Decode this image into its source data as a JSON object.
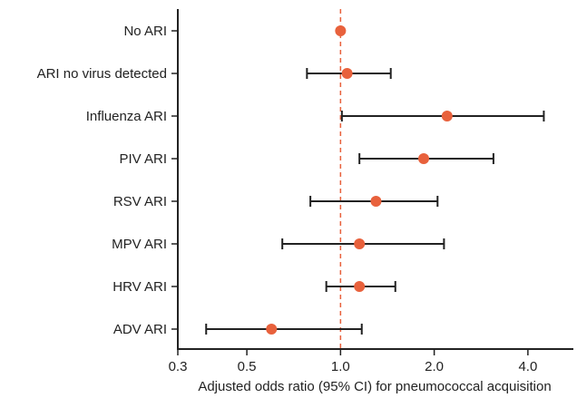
{
  "chart_data": {
    "type": "scatter",
    "subtype": "forest-plot",
    "title": "",
    "xlabel": "Adjusted odds ratio (95% CI) for pneumococcal acquisition",
    "ylabel": "",
    "x_scale": "log",
    "xlim": [
      0.3,
      5.6
    ],
    "x_ticks": [
      0.3,
      0.5,
      1.0,
      2.0,
      4.0
    ],
    "x_tick_labels": [
      "0.3",
      "0.5",
      "1.0",
      "2.0",
      "4.0"
    ],
    "reference_line": 1.0,
    "grid": false,
    "legend": "none",
    "categories": [
      "No ARI",
      "ARI no virus detected",
      "Influenza ARI",
      "PIV  ARI",
      "RSV ARI",
      "MPV ARI",
      "HRV ARI",
      "ADV ARI"
    ],
    "estimates": [
      1.0,
      1.05,
      2.2,
      1.85,
      1.3,
      1.15,
      1.15,
      0.6
    ],
    "ci_lower": [
      null,
      0.78,
      1.01,
      1.15,
      0.8,
      0.65,
      0.9,
      0.37
    ],
    "ci_upper": [
      null,
      1.45,
      4.5,
      3.1,
      2.05,
      2.15,
      1.5,
      1.17
    ],
    "colors": {
      "point": "#e8613c",
      "reference_line": "#e8613c",
      "ci_bar": "#222222",
      "axis": "#222222"
    }
  }
}
